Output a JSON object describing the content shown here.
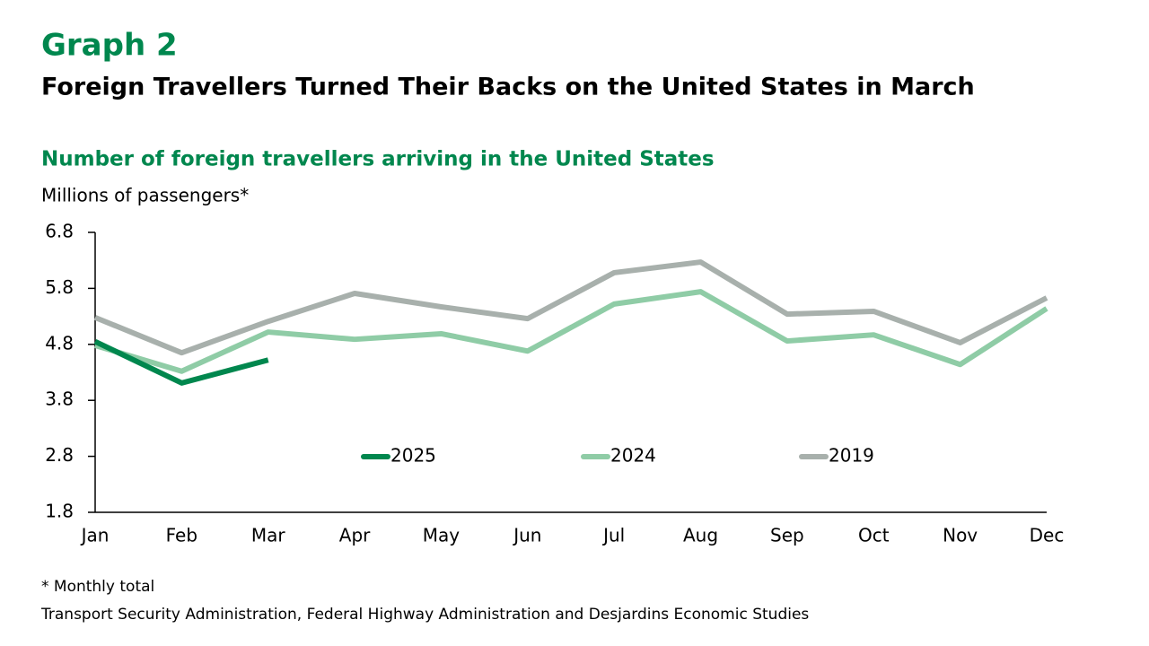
{
  "chart_data": {
    "type": "line",
    "title": "Graph 2",
    "subtitle": "Foreign Travellers Turned Their Backs on the United States in March",
    "chart_title": "Number of foreign travellers arriving in the United States",
    "ylabel": "Millions of passengers*",
    "categories": [
      "Jan",
      "Feb",
      "Mar",
      "Apr",
      "May",
      "Jun",
      "Jul",
      "Aug",
      "Sep",
      "Oct",
      "Nov",
      "Dec"
    ],
    "series": [
      {
        "name": "2025",
        "color": "#00874e",
        "values": [
          4.85,
          4.11,
          4.52,
          null,
          null,
          null,
          null,
          null,
          null,
          null,
          null,
          null
        ]
      },
      {
        "name": "2024",
        "color": "#8fcca6",
        "values": [
          4.78,
          4.32,
          5.02,
          4.89,
          4.99,
          4.68,
          5.52,
          5.74,
          4.86,
          4.97,
          4.44,
          5.44
        ]
      },
      {
        "name": "2019",
        "color": "#a8b0ac",
        "values": [
          5.28,
          4.65,
          5.21,
          5.71,
          5.47,
          5.26,
          6.08,
          6.27,
          5.34,
          5.39,
          4.83,
          5.63
        ]
      }
    ],
    "ylim": [
      1.8,
      6.8
    ],
    "yticks": [
      1.8,
      2.8,
      3.8,
      4.8,
      5.8,
      6.8
    ],
    "grid": false,
    "notes": [
      "* Monthly total",
      "Transport Security Administration, Federal Highway Administration and Desjardins Economic Studies"
    ]
  }
}
